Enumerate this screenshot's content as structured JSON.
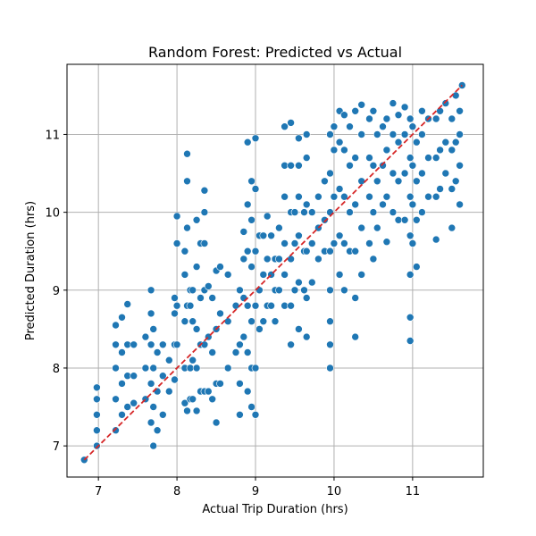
{
  "chart_data": {
    "type": "scatter",
    "title": "Random Forest: Predicted vs Actual",
    "xlabel": "Actual Trip Duration (hrs)",
    "ylabel": "Predicted Duration (hrs)",
    "xlim": [
      6.6,
      11.9
    ],
    "ylim": [
      6.6,
      11.9
    ],
    "xticks": [
      7,
      8,
      9,
      10,
      11
    ],
    "yticks": [
      7,
      8,
      9,
      10,
      11
    ],
    "grid": true,
    "marker_color": "#1f77b4",
    "reference_line": {
      "x": [
        6.82,
        11.63
      ],
      "y": [
        6.82,
        11.63
      ],
      "color": "#d62728",
      "style": "dashed"
    },
    "points": [
      [
        6.82,
        6.82
      ],
      [
        6.98,
        7.0
      ],
      [
        6.98,
        7.2
      ],
      [
        6.98,
        7.4
      ],
      [
        6.98,
        7.6
      ],
      [
        6.98,
        7.75
      ],
      [
        7.22,
        7.2
      ],
      [
        7.22,
        7.6
      ],
      [
        7.22,
        8.0
      ],
      [
        7.22,
        8.3
      ],
      [
        7.22,
        8.55
      ],
      [
        7.3,
        7.4
      ],
      [
        7.3,
        7.8
      ],
      [
        7.3,
        8.2
      ],
      [
        7.3,
        8.65
      ],
      [
        7.37,
        7.5
      ],
      [
        7.37,
        7.9
      ],
      [
        7.37,
        8.3
      ],
      [
        7.37,
        8.82
      ],
      [
        7.45,
        7.55
      ],
      [
        7.45,
        7.9
      ],
      [
        7.45,
        8.3
      ],
      [
        7.6,
        7.6
      ],
      [
        7.6,
        8.0
      ],
      [
        7.6,
        8.4
      ],
      [
        7.67,
        7.3
      ],
      [
        7.67,
        7.8
      ],
      [
        7.67,
        8.3
      ],
      [
        7.67,
        8.7
      ],
      [
        7.67,
        9.0
      ],
      [
        7.7,
        7.0
      ],
      [
        7.7,
        7.5
      ],
      [
        7.7,
        8.0
      ],
      [
        7.7,
        8.5
      ],
      [
        7.75,
        7.2
      ],
      [
        7.75,
        7.7
      ],
      [
        7.75,
        8.2
      ],
      [
        7.82,
        7.4
      ],
      [
        7.82,
        7.9
      ],
      [
        7.82,
        8.3
      ],
      [
        7.9,
        7.7
      ],
      [
        7.9,
        8.1
      ],
      [
        7.97,
        7.85
      ],
      [
        7.97,
        8.3
      ],
      [
        7.97,
        8.7
      ],
      [
        7.97,
        8.9
      ],
      [
        8.0,
        9.6
      ],
      [
        8.0,
        9.95
      ],
      [
        8.0,
        8.3
      ],
      [
        8.0,
        8.8
      ],
      [
        8.1,
        7.55
      ],
      [
        8.1,
        8.0
      ],
      [
        8.1,
        8.6
      ],
      [
        8.1,
        9.2
      ],
      [
        8.1,
        9.5
      ],
      [
        8.13,
        7.45
      ],
      [
        8.13,
        8.8
      ],
      [
        8.13,
        9.8
      ],
      [
        8.13,
        10.4
      ],
      [
        8.13,
        10.75
      ],
      [
        8.17,
        7.6
      ],
      [
        8.17,
        8.0
      ],
      [
        8.17,
        8.8
      ],
      [
        8.17,
        9.0
      ],
      [
        8.2,
        7.6
      ],
      [
        8.2,
        8.1
      ],
      [
        8.2,
        8.6
      ],
      [
        8.2,
        9.0
      ],
      [
        8.25,
        7.45
      ],
      [
        8.25,
        8.0
      ],
      [
        8.25,
        8.5
      ],
      [
        8.25,
        9.3
      ],
      [
        8.25,
        9.9
      ],
      [
        8.3,
        7.7
      ],
      [
        8.3,
        8.3
      ],
      [
        8.3,
        8.9
      ],
      [
        8.3,
        9.6
      ],
      [
        8.35,
        7.7
      ],
      [
        8.35,
        8.3
      ],
      [
        8.35,
        9.0
      ],
      [
        8.35,
        9.6
      ],
      [
        8.35,
        10.0
      ],
      [
        8.35,
        10.28
      ],
      [
        8.4,
        7.7
      ],
      [
        8.4,
        8.4
      ],
      [
        8.4,
        9.05
      ],
      [
        8.45,
        7.6
      ],
      [
        8.45,
        8.2
      ],
      [
        8.45,
        8.9
      ],
      [
        8.5,
        7.3
      ],
      [
        8.5,
        7.8
      ],
      [
        8.5,
        8.5
      ],
      [
        8.5,
        9.25
      ],
      [
        8.55,
        7.8
      ],
      [
        8.55,
        8.7
      ],
      [
        8.55,
        9.3
      ],
      [
        8.65,
        8.0
      ],
      [
        8.65,
        8.6
      ],
      [
        8.65,
        9.2
      ],
      [
        8.75,
        8.2
      ],
      [
        8.75,
        8.8
      ],
      [
        8.8,
        7.4
      ],
      [
        8.8,
        7.8
      ],
      [
        8.8,
        8.3
      ],
      [
        8.8,
        9.0
      ],
      [
        8.85,
        8.4
      ],
      [
        8.85,
        8.9
      ],
      [
        8.85,
        9.4
      ],
      [
        8.85,
        9.75
      ],
      [
        8.9,
        7.7
      ],
      [
        8.9,
        8.2
      ],
      [
        8.9,
        8.8
      ],
      [
        8.9,
        9.5
      ],
      [
        8.9,
        10.1
      ],
      [
        8.9,
        10.9
      ],
      [
        8.95,
        7.5
      ],
      [
        8.95,
        8.0
      ],
      [
        8.95,
        8.6
      ],
      [
        8.95,
        9.3
      ],
      [
        8.95,
        9.9
      ],
      [
        8.95,
        10.4
      ],
      [
        9.0,
        7.4
      ],
      [
        9.0,
        8.0
      ],
      [
        9.0,
        8.8
      ],
      [
        9.0,
        9.5
      ],
      [
        9.0,
        10.3
      ],
      [
        9.0,
        10.95
      ],
      [
        9.05,
        8.5
      ],
      [
        9.05,
        9.0
      ],
      [
        9.05,
        9.7
      ],
      [
        9.1,
        8.6
      ],
      [
        9.1,
        9.2
      ],
      [
        9.1,
        9.7
      ],
      [
        9.15,
        8.8
      ],
      [
        9.15,
        9.4
      ],
      [
        9.15,
        9.95
      ],
      [
        9.2,
        8.8
      ],
      [
        9.2,
        9.2
      ],
      [
        9.2,
        9.7
      ],
      [
        9.25,
        8.6
      ],
      [
        9.25,
        9.0
      ],
      [
        9.25,
        9.4
      ],
      [
        9.3,
        9.0
      ],
      [
        9.3,
        9.4
      ],
      [
        9.3,
        9.8
      ],
      [
        9.37,
        8.8
      ],
      [
        9.37,
        9.2
      ],
      [
        9.37,
        9.6
      ],
      [
        9.37,
        10.2
      ],
      [
        9.37,
        10.6
      ],
      [
        9.37,
        11.1
      ],
      [
        9.45,
        8.3
      ],
      [
        9.45,
        8.8
      ],
      [
        9.45,
        9.4
      ],
      [
        9.45,
        10.0
      ],
      [
        9.45,
        10.6
      ],
      [
        9.45,
        11.15
      ],
      [
        9.5,
        9.0
      ],
      [
        9.5,
        9.6
      ],
      [
        9.5,
        10.0
      ],
      [
        9.55,
        8.5
      ],
      [
        9.55,
        9.1
      ],
      [
        9.55,
        9.7
      ],
      [
        9.55,
        10.2
      ],
      [
        9.55,
        10.6
      ],
      [
        9.55,
        10.95
      ],
      [
        9.62,
        9.0
      ],
      [
        9.62,
        9.5
      ],
      [
        9.62,
        10.0
      ],
      [
        9.65,
        8.4
      ],
      [
        9.65,
        8.9
      ],
      [
        9.65,
        9.5
      ],
      [
        9.65,
        10.1
      ],
      [
        9.65,
        10.7
      ],
      [
        9.65,
        11.0
      ],
      [
        9.72,
        9.1
      ],
      [
        9.72,
        9.6
      ],
      [
        9.72,
        10.0
      ],
      [
        9.8,
        9.4
      ],
      [
        9.8,
        9.8
      ],
      [
        9.8,
        10.2
      ],
      [
        9.88,
        9.5
      ],
      [
        9.88,
        9.9
      ],
      [
        9.88,
        10.4
      ],
      [
        9.95,
        8.0
      ],
      [
        9.95,
        8.3
      ],
      [
        9.95,
        8.6
      ],
      [
        9.95,
        9.0
      ],
      [
        9.95,
        9.5
      ],
      [
        9.95,
        10.0
      ],
      [
        9.95,
        10.5
      ],
      [
        9.95,
        11.0
      ],
      [
        10.0,
        9.6
      ],
      [
        10.0,
        10.2
      ],
      [
        10.0,
        10.8
      ],
      [
        10.0,
        11.1
      ],
      [
        10.07,
        9.2
      ],
      [
        10.07,
        9.7
      ],
      [
        10.07,
        10.3
      ],
      [
        10.07,
        10.9
      ],
      [
        10.07,
        11.3
      ],
      [
        10.13,
        9.0
      ],
      [
        10.13,
        9.6
      ],
      [
        10.13,
        10.2
      ],
      [
        10.13,
        10.8
      ],
      [
        10.13,
        11.25
      ],
      [
        10.2,
        9.5
      ],
      [
        10.2,
        10.0
      ],
      [
        10.2,
        10.6
      ],
      [
        10.2,
        11.1
      ],
      [
        10.27,
        8.4
      ],
      [
        10.27,
        8.9
      ],
      [
        10.27,
        9.5
      ],
      [
        10.27,
        10.1
      ],
      [
        10.27,
        10.7
      ],
      [
        10.27,
        11.3
      ],
      [
        10.35,
        9.2
      ],
      [
        10.35,
        9.8
      ],
      [
        10.35,
        10.4
      ],
      [
        10.35,
        11.0
      ],
      [
        10.35,
        11.38
      ],
      [
        10.45,
        9.6
      ],
      [
        10.45,
        10.2
      ],
      [
        10.45,
        10.7
      ],
      [
        10.45,
        11.2
      ],
      [
        10.5,
        9.4
      ],
      [
        10.5,
        10.0
      ],
      [
        10.5,
        10.6
      ],
      [
        10.5,
        11.3
      ],
      [
        10.55,
        9.8
      ],
      [
        10.55,
        10.4
      ],
      [
        10.55,
        11.0
      ],
      [
        10.62,
        10.1
      ],
      [
        10.62,
        10.6
      ],
      [
        10.62,
        11.1
      ],
      [
        10.67,
        9.62
      ],
      [
        10.67,
        10.2
      ],
      [
        10.67,
        10.8
      ],
      [
        10.67,
        11.2
      ],
      [
        10.75,
        10.0
      ],
      [
        10.75,
        10.5
      ],
      [
        10.75,
        11.0
      ],
      [
        10.75,
        11.4
      ],
      [
        10.82,
        9.9
      ],
      [
        10.82,
        10.4
      ],
      [
        10.82,
        10.9
      ],
      [
        10.82,
        11.25
      ],
      [
        10.9,
        9.9
      ],
      [
        10.9,
        10.5
      ],
      [
        10.9,
        11.0
      ],
      [
        10.9,
        11.35
      ],
      [
        10.97,
        8.35
      ],
      [
        10.97,
        8.65
      ],
      [
        10.97,
        9.2
      ],
      [
        10.97,
        9.7
      ],
      [
        10.97,
        10.2
      ],
      [
        10.97,
        10.7
      ],
      [
        10.97,
        11.2
      ],
      [
        11.0,
        9.6
      ],
      [
        11.0,
        10.1
      ],
      [
        11.0,
        10.6
      ],
      [
        11.0,
        11.1
      ],
      [
        11.05,
        9.3
      ],
      [
        11.05,
        9.9
      ],
      [
        11.05,
        10.4
      ],
      [
        11.05,
        10.9
      ],
      [
        11.12,
        10.0
      ],
      [
        11.12,
        10.5
      ],
      [
        11.12,
        11.0
      ],
      [
        11.12,
        11.3
      ],
      [
        11.2,
        10.2
      ],
      [
        11.2,
        10.7
      ],
      [
        11.2,
        11.2
      ],
      [
        11.3,
        9.65
      ],
      [
        11.3,
        10.2
      ],
      [
        11.3,
        10.7
      ],
      [
        11.3,
        11.2
      ],
      [
        11.35,
        10.3
      ],
      [
        11.35,
        10.8
      ],
      [
        11.35,
        11.3
      ],
      [
        11.42,
        10.5
      ],
      [
        11.42,
        10.9
      ],
      [
        11.42,
        11.4
      ],
      [
        11.5,
        9.8
      ],
      [
        11.5,
        10.3
      ],
      [
        11.5,
        10.8
      ],
      [
        11.5,
        11.2
      ],
      [
        11.55,
        10.4
      ],
      [
        11.55,
        10.9
      ],
      [
        11.55,
        11.5
      ],
      [
        11.6,
        10.1
      ],
      [
        11.6,
        10.6
      ],
      [
        11.6,
        11.0
      ],
      [
        11.6,
        11.3
      ],
      [
        11.63,
        11.63
      ]
    ]
  }
}
